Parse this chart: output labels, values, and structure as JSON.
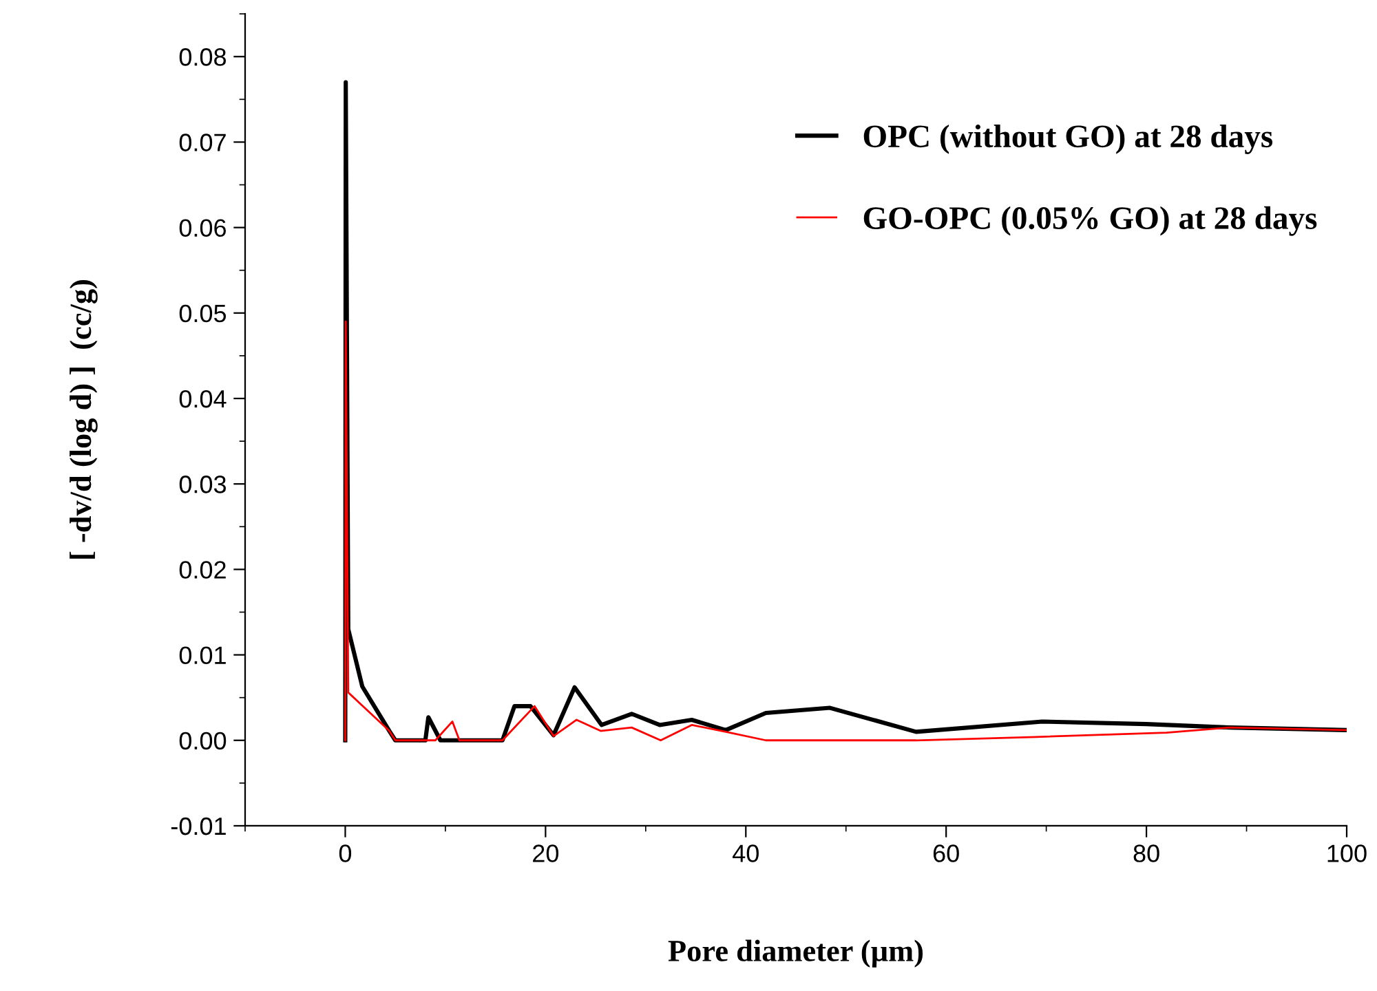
{
  "chart_data": {
    "type": "line",
    "xlabel": "Pore diameter (µm)",
    "ylabel": "[ -dv/d (log d) ]  (cc/g)",
    "xlim": [
      -10,
      100
    ],
    "xticks": [
      0,
      20,
      40,
      60,
      80,
      100
    ],
    "ylim": [
      -0.01,
      0.085
    ],
    "yticks": [
      -0.01,
      {
        "value": 0,
        "label": "0.00"
      },
      0.01,
      0.02,
      0.03,
      0.04,
      0.05,
      0.06,
      0.07,
      0.08
    ],
    "grid": false,
    "legend": "top right",
    "series": [
      {
        "name": "OPC (without GO) at 28 days",
        "color": "#000000",
        "x": [
          0,
          0.05,
          0.3,
          1.7,
          4.4,
          5,
          8,
          8.3,
          9.5,
          11.3,
          15.7,
          16.9,
          18.5,
          20.8,
          22.9,
          25.6,
          28.6,
          31.4,
          34.6,
          38,
          42,
          48.4,
          57,
          69.6,
          80,
          88.3,
          100
        ],
        "values": [
          0,
          0.077,
          0.013,
          0.0063,
          0.0011,
          0,
          0,
          0.0027,
          0,
          0,
          0,
          0.004,
          0.004,
          0.0006,
          0.0062,
          0.0018,
          0.0031,
          0.0018,
          0.0024,
          0.0012,
          0.0032,
          0.0038,
          0.001,
          0.0022,
          0.0019,
          0.0015,
          0.0012
        ]
      },
      {
        "name": "GO-OPC (0.05% GO) at 28 days",
        "color": "#ff0000",
        "x": [
          0,
          0.05,
          0.3,
          4.4,
          5,
          9,
          10.7,
          11.4,
          15.7,
          18.9,
          20.8,
          23.1,
          25.5,
          28.6,
          31.5,
          34.6,
          38,
          42,
          57,
          69,
          82,
          88.3,
          100
        ],
        "values": [
          0,
          0.049,
          0.0056,
          0.0011,
          0,
          0,
          0.0022,
          0,
          0,
          0.004,
          0.0005,
          0.0024,
          0.0011,
          0.0015,
          0,
          0.0018,
          0.001,
          0,
          0,
          0.0004,
          0.0009,
          0.0015,
          0.0012
        ]
      }
    ]
  }
}
